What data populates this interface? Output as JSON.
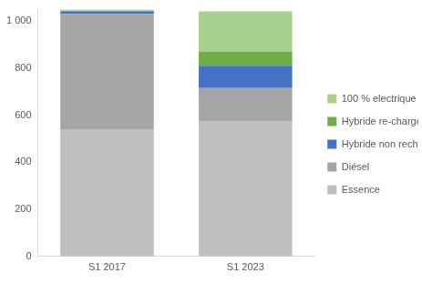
{
  "chart_data": {
    "type": "bar",
    "stacked": true,
    "grid": false,
    "legend": "right",
    "categories": [
      "S1 2017",
      "S1 2023"
    ],
    "series": [
      {
        "name": "Essence",
        "color": "#bfbfbf",
        "values": [
          540,
          575
        ]
      },
      {
        "name": "Diésel",
        "color": "#a5a5a5",
        "values": [
          490,
          140
        ]
      },
      {
        "name": "Hybride non rechargeable",
        "color": "#4472c4",
        "values": [
          10,
          95
        ]
      },
      {
        "name": "Hybride re-chargeable",
        "color": "#70ad47",
        "values": [
          3,
          60
        ]
      },
      {
        "name": "100 % electrique",
        "color": "#a9d18e",
        "values": [
          4,
          170
        ]
      }
    ],
    "ylim": [
      0,
      1050
    ],
    "yticks": [
      0,
      200,
      400,
      600,
      800,
      {
        "value": 1000,
        "label": "1 000"
      }
    ]
  }
}
